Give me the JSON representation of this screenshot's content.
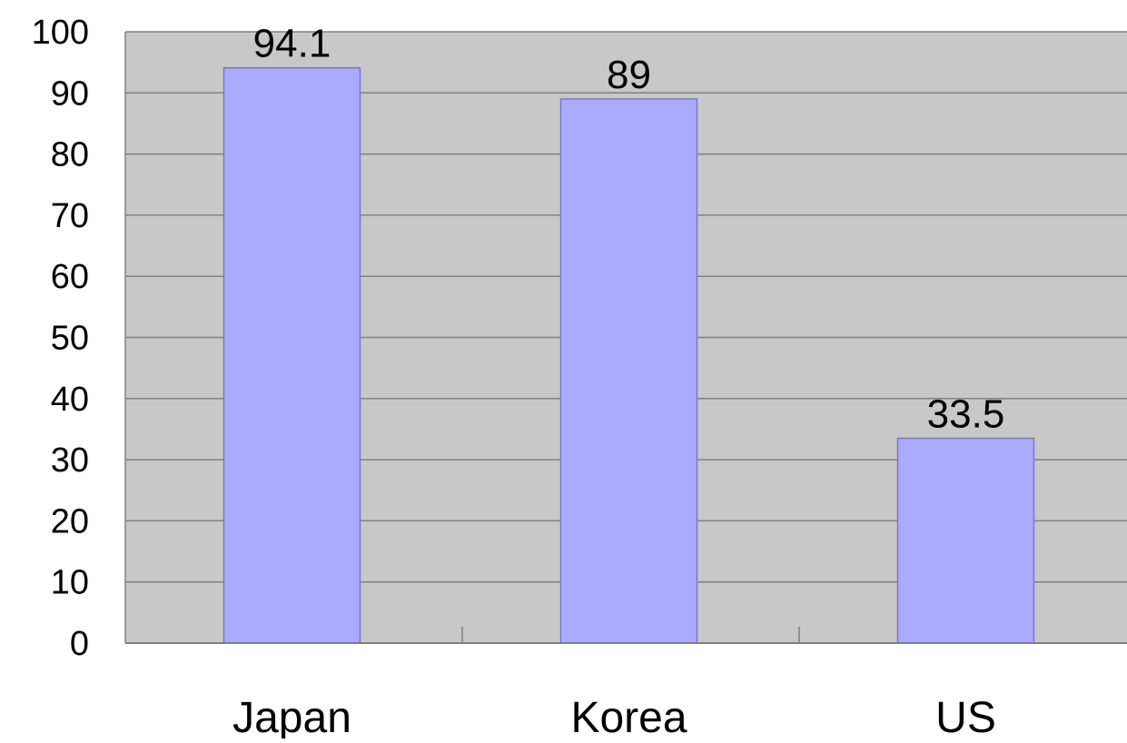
{
  "chart_data": {
    "type": "bar",
    "title": "",
    "xlabel": "",
    "ylabel": "",
    "categories": [
      "Japan",
      "Korea",
      "US"
    ],
    "values": [
      94.1,
      89,
      33.5
    ],
    "data_labels": [
      "94.1",
      "89",
      "33.5"
    ],
    "ylim": [
      0,
      100
    ],
    "y_ticks": [
      0,
      10,
      20,
      30,
      40,
      50,
      60,
      70,
      80,
      90,
      100
    ],
    "y_tick_labels": [
      "0",
      "10",
      "20",
      "30",
      "40",
      "50",
      "60",
      "70",
      "80",
      "90",
      "100"
    ],
    "grid": true,
    "legend": "none",
    "colors": {
      "plot_background": "#c8c8c8",
      "bar_fill": "#aaaaff",
      "bar_stroke": "#7777cc",
      "gridline": "#808080",
      "axis": "#808080"
    }
  }
}
